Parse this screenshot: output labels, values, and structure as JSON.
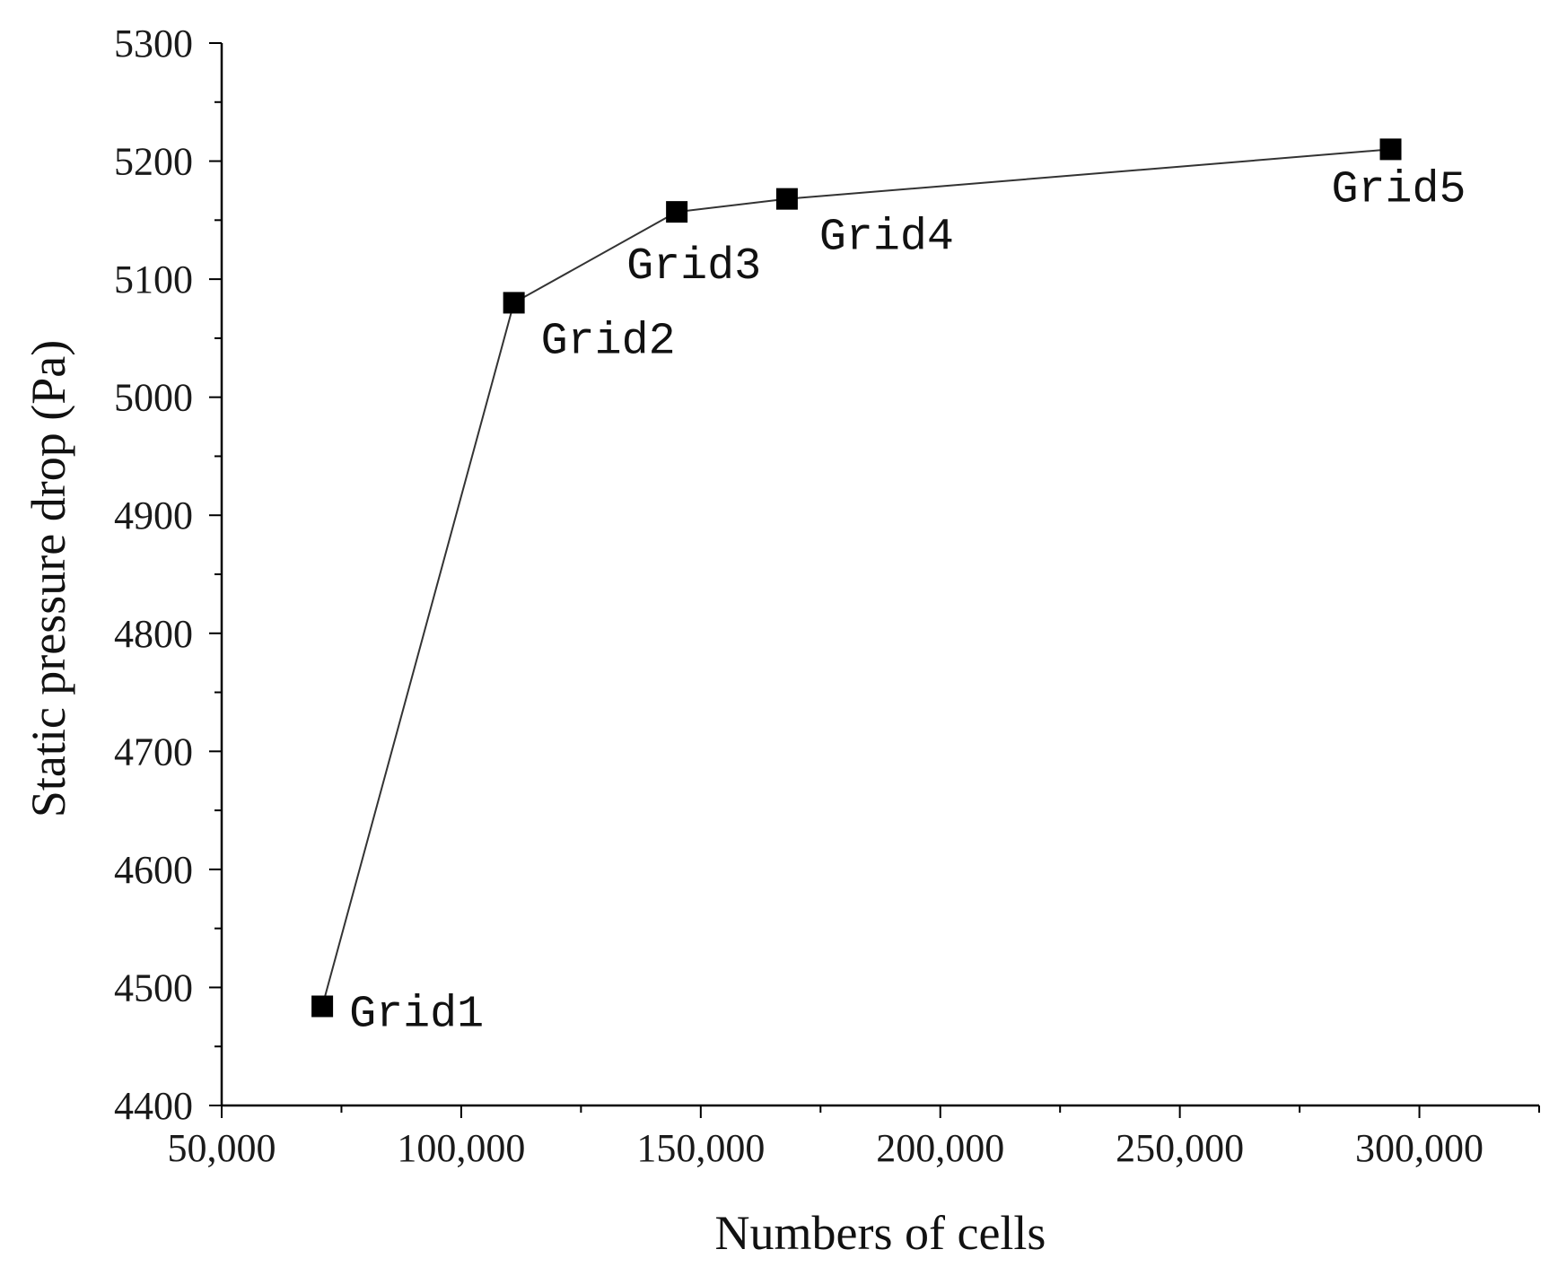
{
  "chart_data": {
    "type": "line",
    "title": "",
    "xlabel": "Numbers of cells",
    "ylabel": "Static pressure drop (Pa)",
    "xlim": [
      50000,
      325000
    ],
    "ylim": [
      4400,
      5300
    ],
    "x_ticks": [
      50000,
      100000,
      150000,
      200000,
      250000,
      300000
    ],
    "x_tick_labels": [
      "50,000",
      "100,000",
      "150,000",
      "200,000",
      "250,000",
      "300,000"
    ],
    "y_ticks": [
      4400,
      4500,
      4600,
      4700,
      4800,
      4900,
      5000,
      5100,
      5200,
      5300
    ],
    "y_tick_labels": [
      "4400",
      "4500",
      "4600",
      "4700",
      "4800",
      "4900",
      "5000",
      "5100",
      "5200",
      "5300"
    ],
    "grid": false,
    "legend": "none",
    "marker": "square",
    "line_color": "#333333",
    "marker_color": "#000000",
    "series": [
      {
        "x": [
          71000,
          111000,
          145000,
          168000,
          294000
        ],
        "y": [
          4484,
          5080,
          5157,
          5168,
          5210
        ],
        "labels": [
          "Grid1",
          "Grid2",
          "Grid3",
          "Grid4",
          "Grid5"
        ]
      }
    ]
  }
}
